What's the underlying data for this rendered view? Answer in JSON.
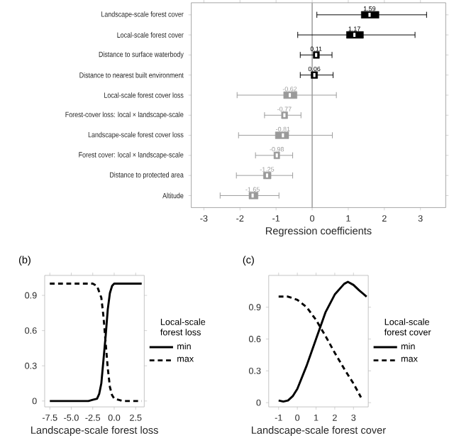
{
  "chart_data": [
    {
      "type": "box",
      "orientation": "horizontal",
      "xlabel": "Regression coefficients",
      "categories": [
        "Landscape-scale forest cover",
        "Local-scale forest cover",
        "Distance to surface waterbody",
        "Distance to nearest built environment",
        "Local-scale forest cover loss",
        "Forest-cover loss: local × landscape-scale",
        "Landscape-scale forest cover loss",
        "Forest cover: local × landscape-scale",
        "Distance to protected area",
        "Altitude"
      ],
      "boxes": [
        {
          "low": 0.13,
          "q1": 1.36,
          "median": 1.59,
          "q3": 1.85,
          "high": 3.17
        },
        {
          "low": -0.4,
          "q1": 0.95,
          "median": 1.17,
          "q3": 1.42,
          "high": 2.85
        },
        {
          "low": -0.33,
          "q1": 0.03,
          "median": 0.11,
          "q3": 0.2,
          "high": 0.55
        },
        {
          "low": -0.33,
          "q1": -0.03,
          "median": 0.06,
          "q3": 0.15,
          "high": 0.58
        },
        {
          "low": -2.08,
          "q1": -0.79,
          "median": -0.62,
          "q3": -0.42,
          "high": 0.67
        },
        {
          "low": -1.32,
          "q1": -0.85,
          "median": -0.77,
          "q3": -0.68,
          "high": -0.31
        },
        {
          "low": -2.04,
          "q1": -1.02,
          "median": -0.81,
          "q3": -0.65,
          "high": 0.56
        },
        {
          "low": -1.57,
          "q1": -1.06,
          "median": -0.98,
          "q3": -0.9,
          "high": -0.54
        },
        {
          "low": -2.1,
          "q1": -1.35,
          "median": -1.25,
          "q3": -1.14,
          "high": -0.54
        },
        {
          "low": -2.55,
          "q1": -1.75,
          "median": -1.65,
          "q3": -1.5,
          "high": -0.92
        }
      ],
      "colors": [
        "#000000",
        "#000000",
        "#000000",
        "#000000",
        "#9a9a9a",
        "#9a9a9a",
        "#9a9a9a",
        "#9a9a9a",
        "#9a9a9a",
        "#9a9a9a"
      ],
      "value_labels": [
        "1.59",
        "1.17",
        "0.11",
        "0.06",
        "-0.62",
        "-0.77",
        "-0.81",
        "-0.98",
        "-1.25",
        "-1.65"
      ],
      "xlim": [
        -3.35,
        3.7
      ],
      "xticks": [
        -3,
        -2,
        -1,
        0,
        1,
        2,
        3
      ],
      "ref_lines": [
        {
          "axis": "x",
          "value": 0,
          "color": "#a0a0a0"
        }
      ]
    },
    {
      "type": "line",
      "title": "(b)",
      "xlabel": "Landscape-scale forest loss",
      "legend_title": "Local-scale forest loss",
      "legend": "right",
      "xlim": [
        -8.1,
        3.5
      ],
      "ylim": [
        -0.05,
        1.07
      ],
      "xticks": [
        -7.5,
        {
          "value": -5,
          "label": "-5.0"
        },
        -2.5,
        {
          "value": 0,
          "label": "0.0"
        },
        2.5
      ],
      "yticks": [
        0,
        0.3,
        0.6,
        0.9
      ],
      "series": [
        {
          "name": "min",
          "color": "#000000",
          "line_style": "solid",
          "x": [
            -7.5,
            -3,
            -2.5,
            -2,
            -1.75,
            -1.5,
            -1.25,
            -1,
            -0.75,
            -0.5,
            -0.25,
            0,
            0.5,
            3.2
          ],
          "values": [
            0,
            0,
            0.01,
            0.02,
            0.06,
            0.15,
            0.35,
            0.55,
            0.78,
            0.92,
            0.98,
            1.0,
            1.0,
            1.0
          ]
        },
        {
          "name": "max",
          "color": "#000000",
          "line_style": "dashed",
          "x": [
            -7.5,
            -3,
            -2.5,
            -2,
            -1.5,
            -1.25,
            -1,
            -0.75,
            -0.5,
            -0.25,
            0,
            0.5,
            1,
            3.2
          ],
          "values": [
            1.0,
            1.0,
            1.0,
            0.98,
            0.88,
            0.72,
            0.5,
            0.28,
            0.12,
            0.05,
            0.02,
            0.01,
            0,
            0
          ]
        }
      ]
    },
    {
      "type": "line",
      "title": "(c)",
      "xlabel": "Landscape-scale forest cover",
      "legend_title": "Local-scale forest cover",
      "legend": "right",
      "xlim": [
        -1.53,
        3.79
      ],
      "ylim": [
        -0.04,
        1.2
      ],
      "xticks": [
        -1,
        0,
        1,
        2,
        3
      ],
      "yticks": [
        0,
        0.3,
        0.6,
        0.9
      ],
      "series": [
        {
          "name": "min",
          "color": "#000000",
          "line_style": "solid",
          "x": [
            -1,
            -0.75,
            -0.5,
            -0.25,
            0,
            0.5,
            1,
            1.5,
            2,
            2.5,
            2.7,
            3,
            3.3,
            3.7
          ],
          "values": [
            0.02,
            0.01,
            0.02,
            0.06,
            0.13,
            0.35,
            0.6,
            0.85,
            1.02,
            1.12,
            1.14,
            1.11,
            1.06,
            1.0
          ]
        },
        {
          "name": "max",
          "color": "#000000",
          "line_style": "dashed",
          "x": [
            -1,
            -0.5,
            0,
            0.5,
            1,
            1.5,
            2,
            2.5,
            3,
            3.4
          ],
          "values": [
            1.0,
            1.0,
            0.97,
            0.9,
            0.78,
            0.63,
            0.47,
            0.32,
            0.18,
            0.05
          ]
        }
      ]
    }
  ]
}
